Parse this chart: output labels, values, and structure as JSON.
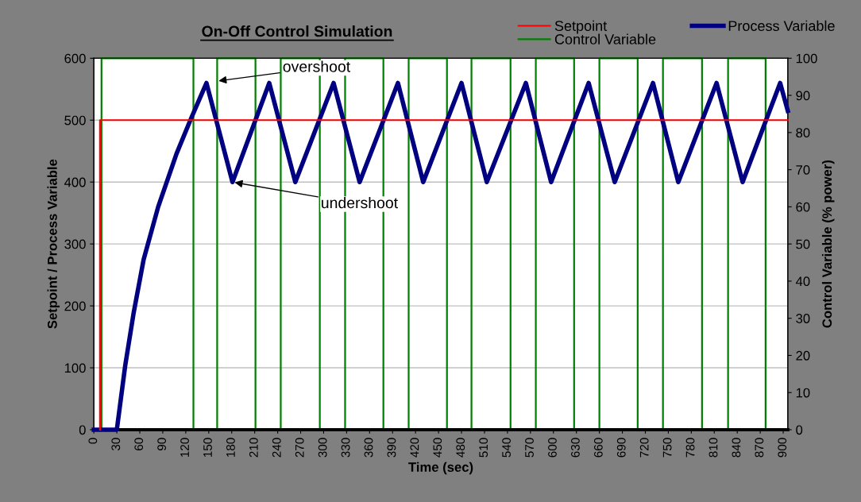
{
  "chart_data": {
    "type": "line",
    "title": "On-Off Control Simulation",
    "xlabel": "Time (sec)",
    "ylabel": "Setpoint / Process Variable",
    "y2label": "Control Variable (% power)",
    "series": [
      {
        "name": "Setpoint",
        "type": "line",
        "color": "#ff0000",
        "x": [
          8,
          8,
          906
        ],
        "values": [
          0,
          500,
          500
        ]
      },
      {
        "name": "Control Variable",
        "type": "step",
        "axis": "y2",
        "color": "#008000",
        "x": [
          0,
          10,
          130,
          161,
          211,
          244,
          295,
          328,
          378,
          411,
          461,
          493,
          544,
          577,
          627,
          660,
          710,
          743,
          794,
          828,
          877,
          906
        ],
        "values": [
          0,
          100,
          0,
          100,
          0,
          100,
          0,
          100,
          0,
          100,
          0,
          100,
          0,
          100,
          0,
          100,
          0,
          100,
          0,
          100,
          0,
          0
        ]
      },
      {
        "name": "Process Variable",
        "color": "#000080",
        "x": [
          0,
          30,
          41,
          52,
          65,
          84,
          108,
          126,
          147,
          181,
          229,
          263,
          313,
          347,
          397,
          430,
          480,
          513,
          564,
          597,
          646,
          680,
          730,
          763,
          813,
          847,
          896,
          906
        ],
        "values": [
          0,
          0,
          104,
          189,
          275,
          360,
          446,
          500,
          560,
          400,
          560,
          400,
          560,
          400,
          560,
          400,
          560,
          400,
          560,
          400,
          560,
          400,
          560,
          400,
          560,
          400,
          560,
          515
        ]
      }
    ],
    "xlim": [
      0,
      906
    ],
    "xticks": [
      0,
      30,
      60,
      90,
      120,
      150,
      180,
      210,
      240,
      270,
      300,
      330,
      360,
      390,
      420,
      450,
      480,
      510,
      540,
      570,
      600,
      630,
      660,
      690,
      720,
      750,
      780,
      810,
      840,
      870,
      900
    ],
    "ylim": [
      0,
      600
    ],
    "yticks": [
      0,
      100,
      200,
      300,
      400,
      500,
      600
    ],
    "y2lim": [
      0,
      100
    ],
    "y2ticks": [
      0,
      10,
      20,
      30,
      40,
      50,
      60,
      70,
      80,
      90,
      100
    ],
    "grid": "y",
    "legend": "top right",
    "marker": "none",
    "line_style": "solid",
    "annotations": [
      {
        "text": "overshoot",
        "x": 160,
        "y": 563
      },
      {
        "text": "undershoot",
        "x": 181,
        "y": 400
      }
    ]
  }
}
